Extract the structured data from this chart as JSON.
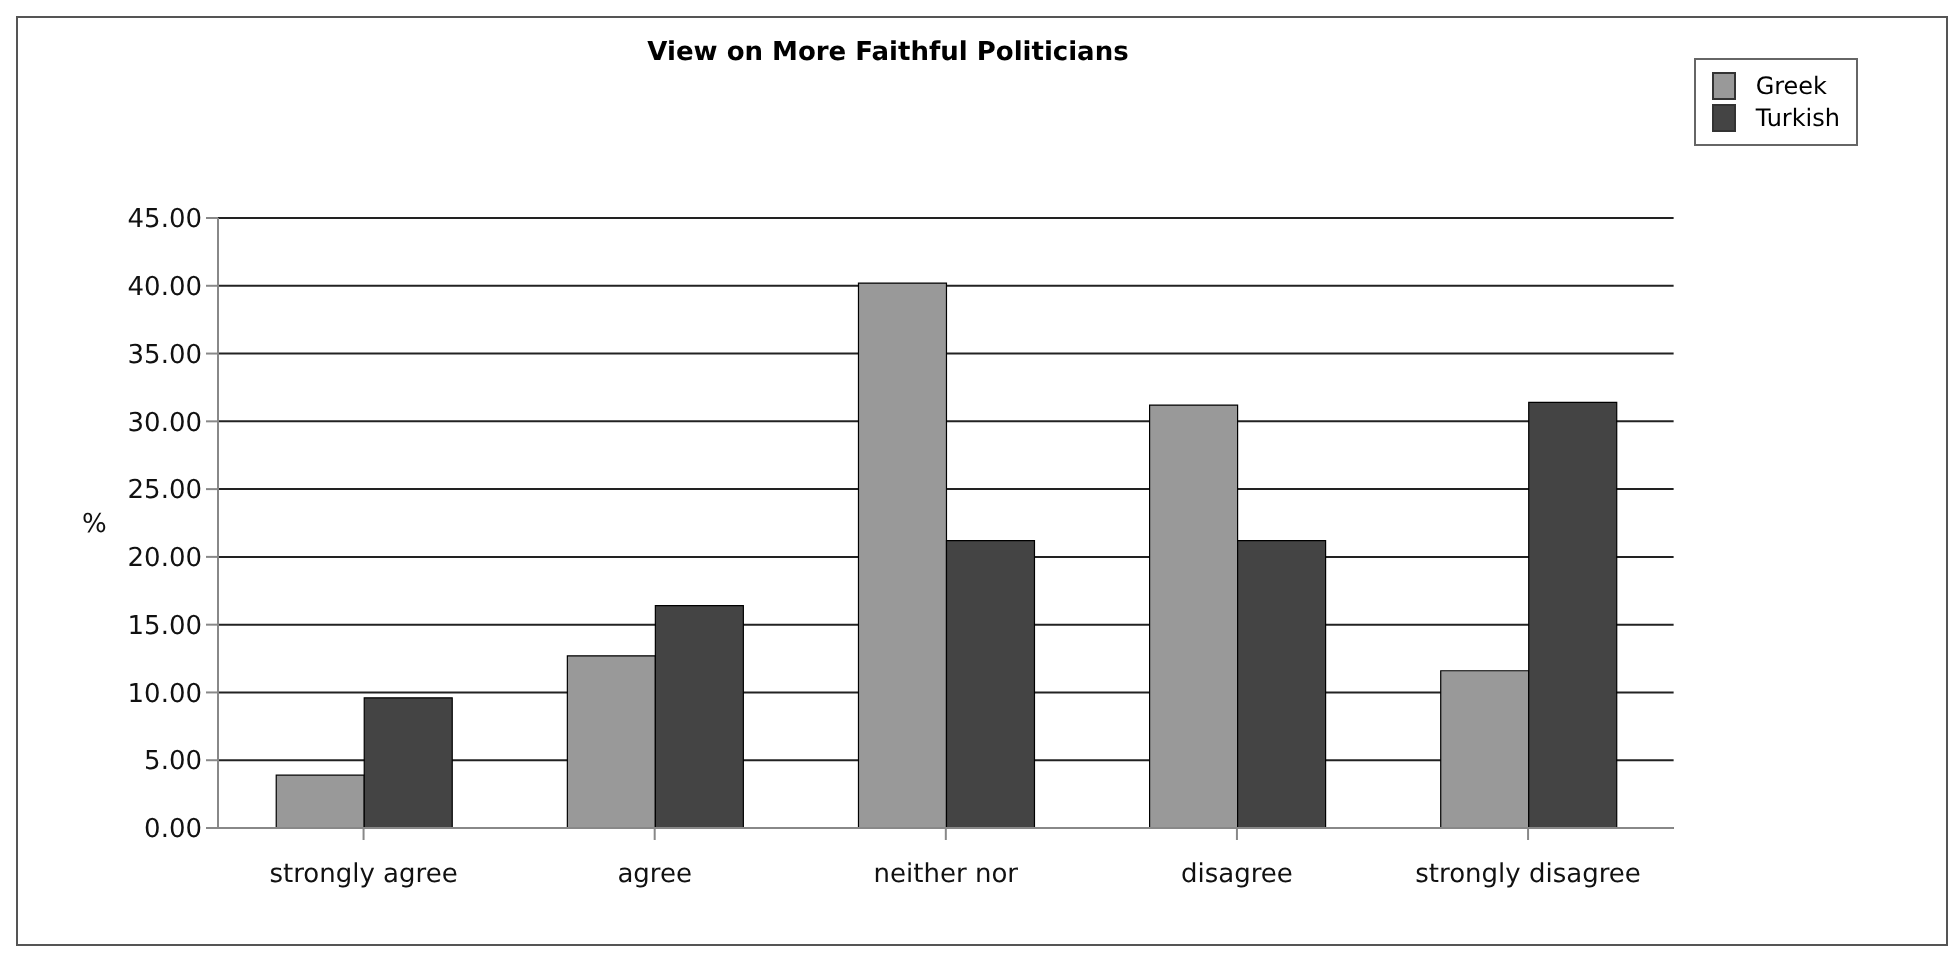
{
  "chart_data": {
    "type": "bar",
    "title": "View on More Faithful Politicians",
    "ylabel": "%",
    "categories": [
      "strongly agree",
      "agree",
      "neither nor",
      "disagree",
      "strongly disagree"
    ],
    "series": [
      {
        "name": "Greek",
        "color": "#999999",
        "values": [
          3.9,
          12.7,
          40.2,
          31.2,
          11.6
        ]
      },
      {
        "name": "Turkish",
        "color": "#444444",
        "values": [
          9.6,
          16.4,
          21.2,
          21.2,
          31.4
        ]
      }
    ],
    "ylim": [
      0,
      45
    ],
    "yticks": [
      {
        "value": 0,
        "label": "0.00"
      },
      {
        "value": 5,
        "label": "5.00"
      },
      {
        "value": 10,
        "label": "10.00"
      },
      {
        "value": 15,
        "label": "15.00"
      },
      {
        "value": 20,
        "label": "20.00"
      },
      {
        "value": 25,
        "label": "25.00"
      },
      {
        "value": 30,
        "label": "30.00"
      },
      {
        "value": 35,
        "label": "35.00"
      },
      {
        "value": 40,
        "label": "40.00"
      },
      {
        "value": 45,
        "label": "45.00"
      }
    ],
    "grid": "y",
    "legend": "top right"
  }
}
